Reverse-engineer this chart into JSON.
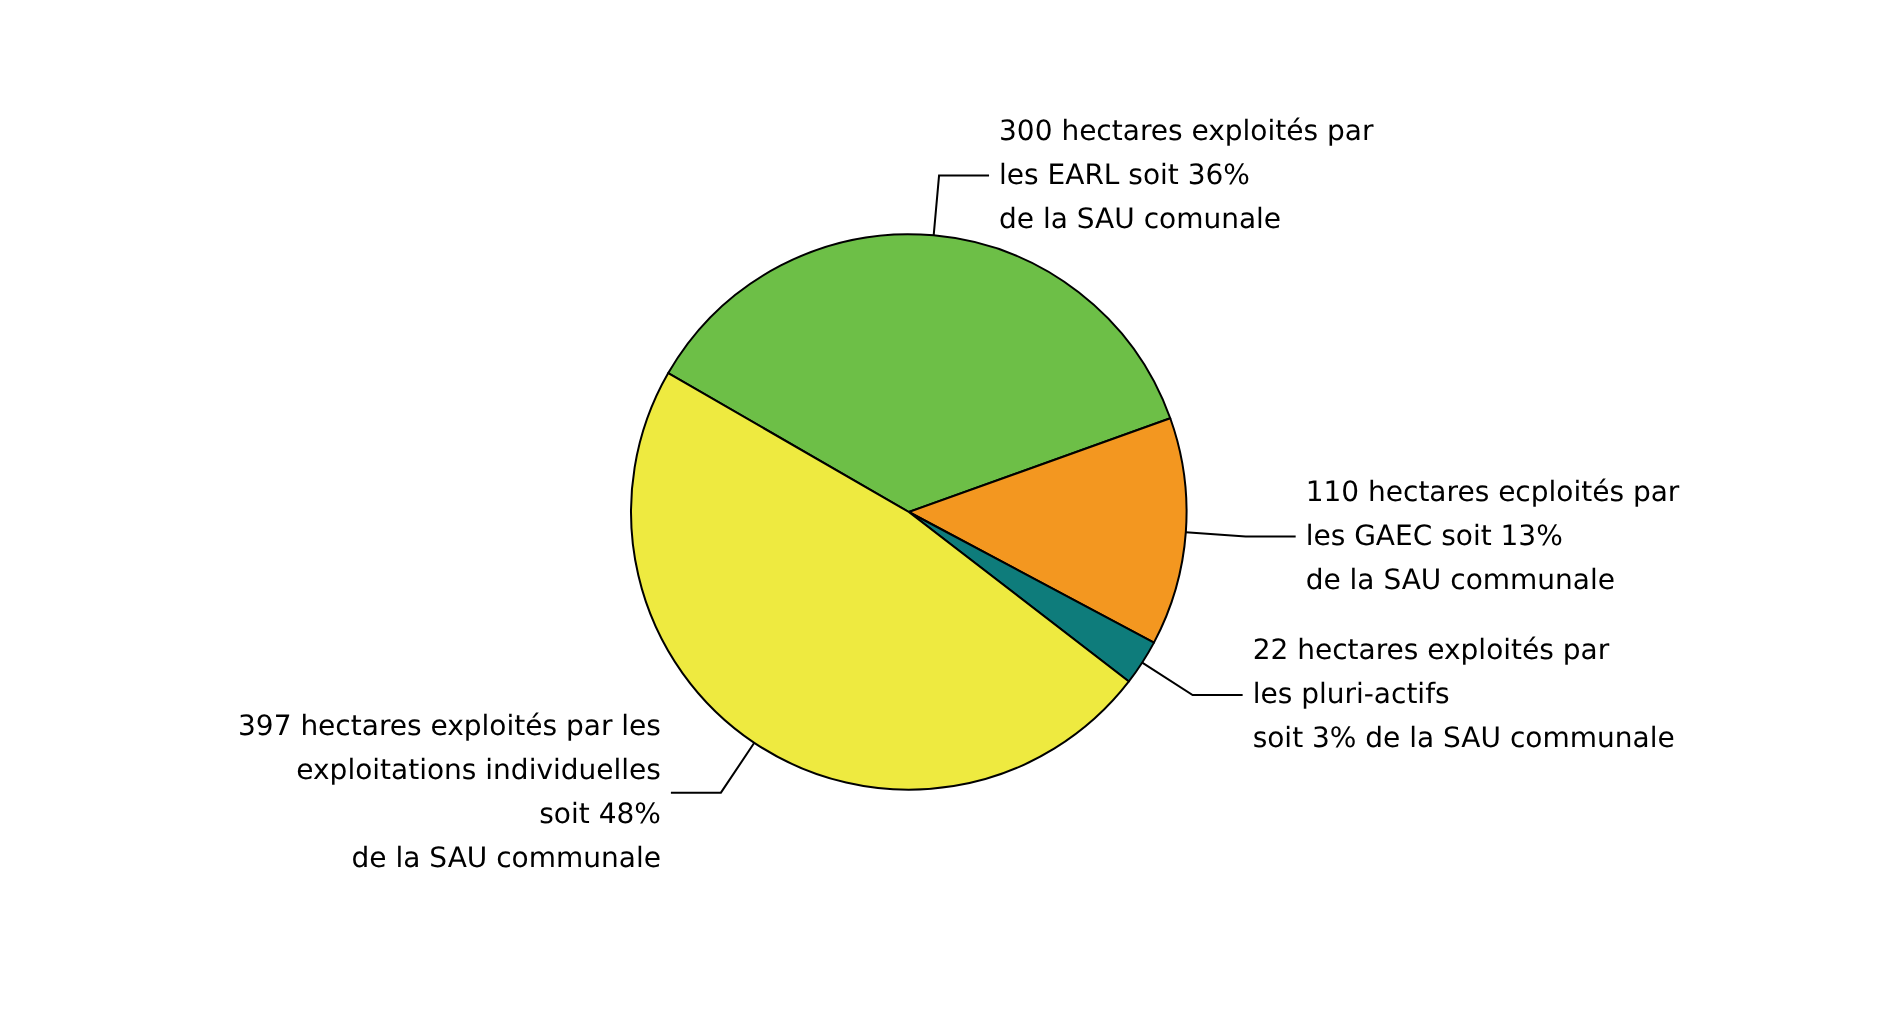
{
  "chart_data": {
    "type": "pie",
    "categories": [
      "300 hectares exploités par\nles EARL soit 36%\nde la SAU comunale",
      "110 hectares ecploités par\nles GAEC soit 13%\nde la SAU communale",
      "22 hectares exploités par\nles pluri-actifs\nsoit 3% de la SAU communale",
      "397 hectares exploités par les\nexploitations individuelles\nsoit 48%\nde la SAU communale"
    ],
    "values": [
      300,
      110,
      22,
      397
    ],
    "colors": [
      "#6dbf47",
      "#f39720",
      "#0e7c7b",
      "#eeea40"
    ],
    "legend": false
  }
}
